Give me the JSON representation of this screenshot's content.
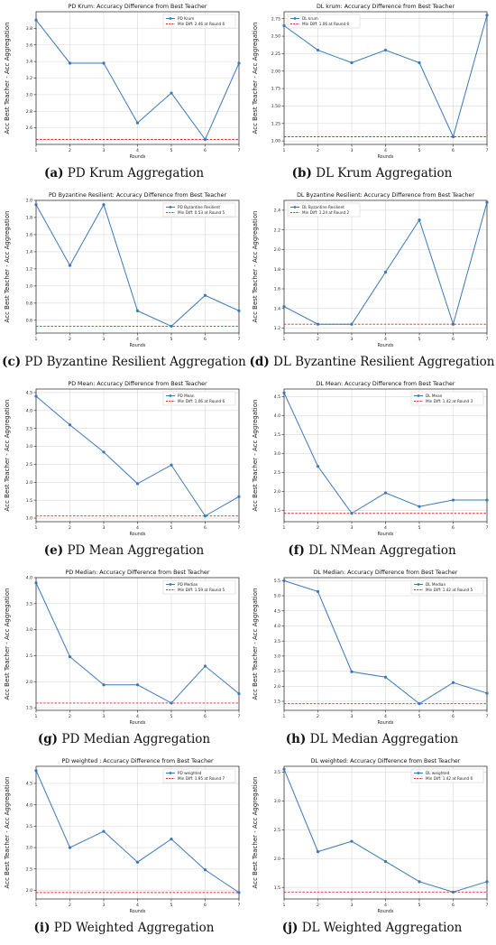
{
  "colors": {
    "line": "#3a78b8",
    "ref": "#d62728",
    "grid": "#d9d9d9",
    "axis": "#222222"
  },
  "chart_data": [
    {
      "type": "line",
      "title": "PD Krum: Accuracy Difference from Best Teacher",
      "xlabel": "Rounds",
      "ylabel": "Acc Best Teacher - Acc Aggregation",
      "x": [
        1,
        2,
        3,
        4,
        5,
        6,
        7
      ],
      "ylim": [
        2.4,
        4.0
      ],
      "yticks": [
        "2.6",
        "2.8",
        "3.0",
        "3.2",
        "3.4",
        "3.6",
        "3.8"
      ],
      "series": [
        {
          "name": "PD Krum",
          "values": [
            3.9,
            3.38,
            3.38,
            2.66,
            3.02,
            2.46,
            3.38
          ]
        }
      ],
      "ref_line": {
        "label": "Min Diff: 2.46 at Round 6",
        "value": 2.46
      },
      "legend": "top-right",
      "grid": true,
      "caption_tag": "(a)",
      "caption_text": "PD Krum Aggregation"
    },
    {
      "type": "line",
      "title": "DL krum: Accuracy Difference from Best Teacher",
      "xlabel": "Rounds",
      "ylabel": "Acc Best Teacher - Acc Aggregation",
      "x": [
        1,
        2,
        3,
        4,
        5,
        6,
        7
      ],
      "ylim": [
        0.95,
        2.85
      ],
      "yticks": [
        "1.00",
        "1.25",
        "1.50",
        "1.75",
        "2.00",
        "2.25",
        "2.50",
        "2.75"
      ],
      "series": [
        {
          "name": "DL krum",
          "values": [
            2.65,
            2.3,
            2.12,
            2.3,
            2.12,
            1.06,
            2.8
          ]
        }
      ],
      "ref_line": {
        "label": "Min Diff: 1.06 at Round 6",
        "value": 1.06
      },
      "legend": "top-left",
      "grid": true,
      "caption_tag": "(b)",
      "caption_text": "DL Krum Aggregation"
    },
    {
      "type": "line",
      "title": "PD Byzantine Resilient: Accuracy Difference from Best Teacher",
      "xlabel": "Rounds",
      "ylabel": "Acc Best Teacher - Acc Aggregation",
      "x": [
        1,
        2,
        3,
        4,
        5,
        6,
        7
      ],
      "ylim": [
        0.45,
        2.0
      ],
      "yticks": [
        "0.6",
        "0.8",
        "1.0",
        "1.2",
        "1.4",
        "1.6",
        "1.8",
        "2.0"
      ],
      "series": [
        {
          "name": "PD Byzantine Resilient",
          "values": [
            1.95,
            1.24,
            1.95,
            0.71,
            0.53,
            0.89,
            0.71
          ]
        }
      ],
      "ref_line": {
        "label": "Min Diff: 0.53 at Round 5",
        "value": 0.53
      },
      "legend": "top-right",
      "grid": true,
      "caption_tag": "(c)",
      "caption_text": "PD Byzantine Resilient Aggregation"
    },
    {
      "type": "line",
      "title": "DL Byzantine Resilient: Accuracy Difference from Best Teacher",
      "xlabel": "Rounds",
      "ylabel": "Acc Best Teacher - Acc Aggregation",
      "x": [
        1,
        2,
        3,
        4,
        5,
        6,
        7
      ],
      "ylim": [
        1.15,
        2.5
      ],
      "yticks": [
        "1.2",
        "1.4",
        "1.6",
        "1.8",
        "2.0",
        "2.2",
        "2.4"
      ],
      "series": [
        {
          "name": "DL Byzantine Resilient",
          "values": [
            1.42,
            1.24,
            1.24,
            1.77,
            2.3,
            1.24,
            2.48
          ]
        }
      ],
      "ref_line": {
        "label": "Min Diff: 1.24 at Round 2",
        "value": 1.24
      },
      "legend": "top-left",
      "grid": true,
      "caption_tag": "(d)",
      "caption_text": "DL Byzantine Resilient Aggregation"
    },
    {
      "type": "line",
      "title": "PD Mean: Accuracy Difference from Best Teacher",
      "xlabel": "Rounds",
      "ylabel": "Acc Best Teacher - Acc Aggregation",
      "x": [
        1,
        2,
        3,
        4,
        5,
        6,
        7
      ],
      "ylim": [
        0.9,
        4.6
      ],
      "yticks": [
        "1.0",
        "1.5",
        "2.0",
        "2.5",
        "3.0",
        "3.5",
        "4.0",
        "4.5"
      ],
      "series": [
        {
          "name": "PD Mean",
          "values": [
            4.4,
            3.6,
            2.84,
            1.96,
            2.48,
            1.06,
            1.6
          ]
        }
      ],
      "ref_line": {
        "label": "Min Diff: 1.06 at Round 6",
        "value": 1.06
      },
      "legend": "top-right",
      "grid": true,
      "caption_tag": "(e)",
      "caption_text": "PD Mean Aggregation"
    },
    {
      "type": "line",
      "title": "DL Mean: Accuracy Difference from Best Teacher",
      "xlabel": "Rounds",
      "ylabel": "Acc Best Teacher - Acc Aggregation",
      "x": [
        1,
        2,
        3,
        4,
        5,
        6,
        7
      ],
      "ylim": [
        1.2,
        4.7
      ],
      "yticks": [
        "1.5",
        "2.0",
        "2.5",
        "3.0",
        "3.5",
        "4.0",
        "4.5"
      ],
      "series": [
        {
          "name": "DL Mean",
          "values": [
            4.6,
            2.66,
            1.42,
            1.96,
            1.6,
            1.77,
            1.77
          ]
        }
      ],
      "ref_line": {
        "label": "Min Diff: 1.42 at Round 3",
        "value": 1.42
      },
      "legend": "top-right",
      "grid": true,
      "caption_tag": "(f)",
      "caption_text": "DL NMean Aggregation"
    },
    {
      "type": "line",
      "title": "PD Median: Accuracy Difference from Best Teacher",
      "xlabel": "Rounds",
      "ylabel": "Acc Best Teacher - Acc Aggregation",
      "x": [
        1,
        2,
        3,
        4,
        5,
        6,
        7
      ],
      "ylim": [
        1.45,
        4.0
      ],
      "yticks": [
        "1.5",
        "2.0",
        "2.5",
        "3.0",
        "3.5",
        "4.0"
      ],
      "series": [
        {
          "name": "PD Median",
          "values": [
            3.9,
            2.48,
            1.94,
            1.94,
            1.59,
            2.3,
            1.77
          ]
        }
      ],
      "ref_line": {
        "label": "Min Diff: 1.59 at Round 5",
        "value": 1.59
      },
      "legend": "top-right",
      "grid": true,
      "caption_tag": "(g)",
      "caption_text": "PD Median Aggregation"
    },
    {
      "type": "line",
      "title": "DL Median: Accuracy Difference from Best Teacher",
      "xlabel": "Rounds",
      "ylabel": "Acc Best Teacher - Acc Aggregation",
      "x": [
        1,
        2,
        3,
        4,
        5,
        6,
        7
      ],
      "ylim": [
        1.2,
        5.6
      ],
      "yticks": [
        "1.5",
        "2.0",
        "2.5",
        "3.0",
        "3.5",
        "4.0",
        "4.5",
        "5.0",
        "5.5"
      ],
      "series": [
        {
          "name": "DL Median",
          "values": [
            5.5,
            5.14,
            2.48,
            2.3,
            1.42,
            2.12,
            1.77
          ]
        }
      ],
      "ref_line": {
        "label": "Min Diff: 1.42 at Round 5",
        "value": 1.42
      },
      "legend": "top-right",
      "grid": true,
      "caption_tag": "(h)",
      "caption_text": "DL Median Aggregation"
    },
    {
      "type": "line",
      "title": "PD weighted : Accuracy Difference from Best Teacher",
      "xlabel": "Rounds",
      "ylabel": "Acc Best Teacher - Acc Aggregation",
      "x": [
        1,
        2,
        3,
        4,
        5,
        6,
        7
      ],
      "ylim": [
        1.8,
        4.9
      ],
      "yticks": [
        "2.0",
        "2.5",
        "3.0",
        "3.5",
        "4.0",
        "4.5"
      ],
      "series": [
        {
          "name": "PD weighted",
          "values": [
            4.8,
            3.0,
            3.38,
            2.66,
            3.2,
            2.48,
            1.95
          ]
        }
      ],
      "ref_line": {
        "label": "Min Diff: 1.95 at Round 7",
        "value": 1.95
      },
      "legend": "top-right",
      "grid": true,
      "caption_tag": "(i)",
      "caption_text": "PD Weighted Aggregation"
    },
    {
      "type": "line",
      "title": "DL weighted: Accuracy Difference from Best Teacher",
      "xlabel": "Rounds",
      "ylabel": "Acc Best Teacher - Acc Aggregation",
      "x": [
        1,
        2,
        3,
        4,
        5,
        6,
        7
      ],
      "ylim": [
        1.3,
        3.6
      ],
      "yticks": [
        "1.5",
        "2.0",
        "2.5",
        "3.0",
        "3.5"
      ],
      "series": [
        {
          "name": "DL weighted",
          "values": [
            3.55,
            2.12,
            2.3,
            1.95,
            1.6,
            1.42,
            1.6
          ]
        }
      ],
      "ref_line": {
        "label": "Min Diff: 1.42 at Round 6",
        "value": 1.42
      },
      "legend": "top-right",
      "grid": true,
      "caption_tag": "(j)",
      "caption_text": "DL Weighted Aggregation"
    }
  ]
}
